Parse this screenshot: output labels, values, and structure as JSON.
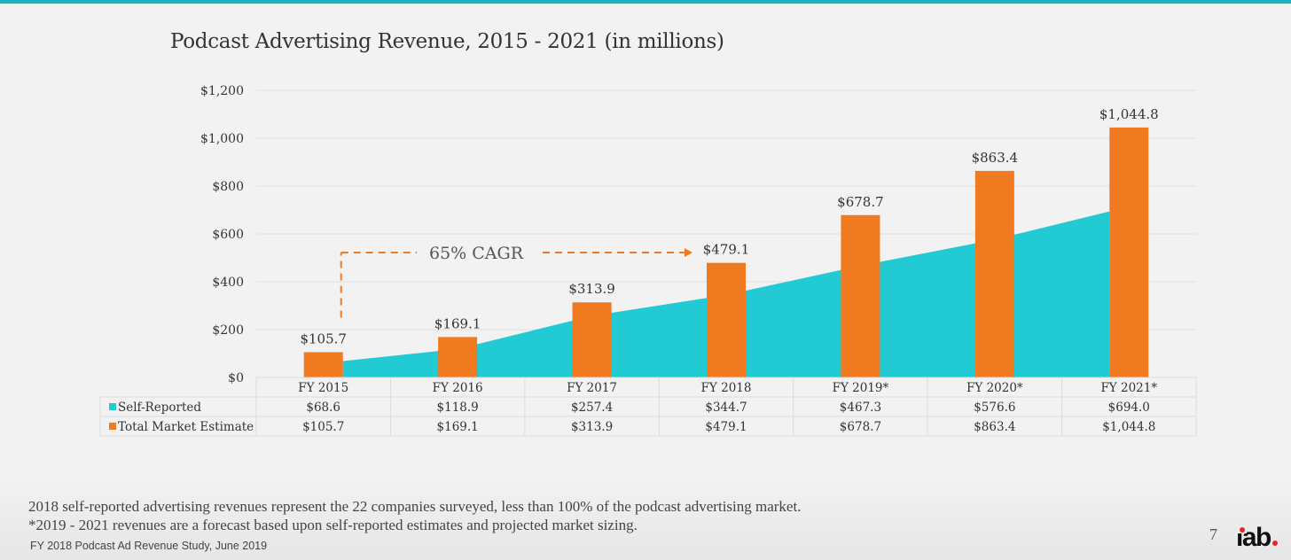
{
  "colors": {
    "top_bar": "#1ab2c0",
    "self_reported": "#22cad3",
    "total_market": "#ef7a1f",
    "gridline": "#e0e0e0",
    "logo_dot": "#e8262a"
  },
  "title": "Podcast Advertising Revenue, 2015 - 2021 (in millions)",
  "chart_data": {
    "type": "bar",
    "title": "Podcast Advertising Revenue, 2015 - 2021 (in millions)",
    "xlabel": "",
    "ylabel": "",
    "ylim": [
      0,
      1200
    ],
    "yticks": [
      0,
      200,
      400,
      600,
      800,
      1000,
      1200
    ],
    "ytick_labels": [
      "$0",
      "$200",
      "$400",
      "$600",
      "$800",
      "$1,000",
      "$1,200"
    ],
    "grid": true,
    "categories": [
      "FY 2015",
      "FY 2016",
      "FY 2017",
      "FY 2018",
      "FY 2019*",
      "FY 2020*",
      "FY 2021*"
    ],
    "series": [
      {
        "name": "Self-Reported",
        "type": "area",
        "values": [
          68.6,
          118.9,
          257.4,
          344.7,
          467.3,
          576.6,
          694.0
        ],
        "labels": [
          "$68.6",
          "$118.9",
          "$257.4",
          "$344.7",
          "$467.3",
          "$576.6",
          "$694.0"
        ]
      },
      {
        "name": "Total Market Estimate",
        "type": "bar",
        "values": [
          105.7,
          169.1,
          313.9,
          479.1,
          678.7,
          863.4,
          1044.8
        ],
        "labels": [
          "$105.7",
          "$169.1",
          "$313.9",
          "$479.1",
          "$678.7",
          "$863.4",
          "$1,044.8"
        ]
      }
    ],
    "legend": "data-table-left",
    "annotation": {
      "text": "65% CAGR",
      "from_category": "FY 2015",
      "to_category": "FY 2018",
      "style": "dashed-arrow"
    }
  },
  "notes": [
    "2018 self-reported advertising revenues represent the 22 companies surveyed, less than 100% of the podcast advertising market.",
    "*2019 - 2021 revenues are a forecast based upon self-reported estimates and projected market sizing."
  ],
  "source": "FY 2018 Podcast Ad Revenue Study, June 2019",
  "page_number": "7",
  "logo": {
    "text": "iab",
    "icon": "iab-logo"
  }
}
